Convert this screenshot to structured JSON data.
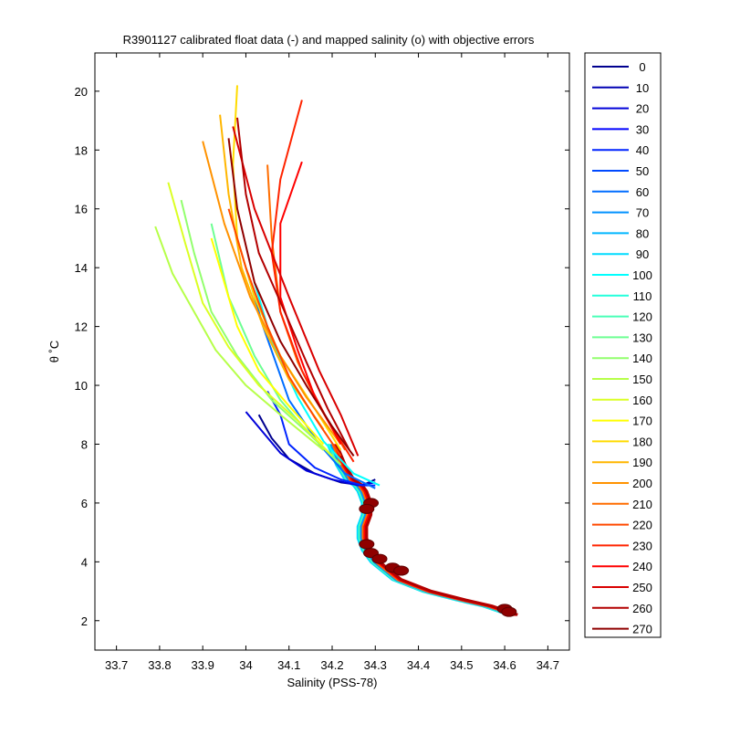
{
  "chart_data": {
    "type": "line",
    "title": "R3901127 calibrated float data (-) and mapped salinity (o) with objective errors",
    "xlabel": "Salinity (PSS-78)",
    "ylabel": "θ ˚C",
    "xlim": [
      33.65,
      34.75
    ],
    "ylim": [
      1.0,
      21.3
    ],
    "xticks": [
      "33.7",
      "33.8",
      "33.9",
      "34",
      "34.1",
      "34.2",
      "34.3",
      "34.4",
      "34.5",
      "34.6",
      "34.7"
    ],
    "yticks": [
      "2",
      "4",
      "6",
      "8",
      "10",
      "12",
      "14",
      "16",
      "18",
      "20"
    ],
    "grid": false,
    "legend_position": "right, outside plot",
    "colormap": "jet",
    "series": [
      {
        "name": "0",
        "color": "#00008f"
      },
      {
        "name": "10",
        "color": "#0000b3"
      },
      {
        "name": "20",
        "color": "#0000d9"
      },
      {
        "name": "30",
        "color": "#0000ff"
      },
      {
        "name": "40",
        "color": "#0024ff"
      },
      {
        "name": "50",
        "color": "#0049ff"
      },
      {
        "name": "60",
        "color": "#006dff"
      },
      {
        "name": "70",
        "color": "#0092ff"
      },
      {
        "name": "80",
        "color": "#00b6ff"
      },
      {
        "name": "90",
        "color": "#00dbff"
      },
      {
        "name": "100",
        "color": "#00ffff"
      },
      {
        "name": "110",
        "color": "#24ffdb"
      },
      {
        "name": "120",
        "color": "#49ffb6"
      },
      {
        "name": "130",
        "color": "#6dff92"
      },
      {
        "name": "140",
        "color": "#92ff6d"
      },
      {
        "name": "150",
        "color": "#b6ff49"
      },
      {
        "name": "160",
        "color": "#dbff24"
      },
      {
        "name": "170",
        "color": "#ffff00"
      },
      {
        "name": "180",
        "color": "#ffdb00"
      },
      {
        "name": "190",
        "color": "#ffb600"
      },
      {
        "name": "200",
        "color": "#ff9200"
      },
      {
        "name": "210",
        "color": "#ff6d00"
      },
      {
        "name": "220",
        "color": "#ff4900"
      },
      {
        "name": "230",
        "color": "#ff2400"
      },
      {
        "name": "240",
        "color": "#ff0000"
      },
      {
        "name": "250",
        "color": "#d90000"
      },
      {
        "name": "260",
        "color": "#b30000"
      },
      {
        "name": "270",
        "color": "#8f0000"
      }
    ],
    "deep_branch": {
      "x": [
        34.2,
        34.22,
        34.24,
        34.26,
        34.27,
        34.28,
        34.28,
        34.27,
        34.27,
        34.28,
        34.3,
        34.35,
        34.42,
        34.5,
        34.56,
        34.62
      ],
      "y": [
        8.0,
        7.3,
        6.8,
        6.6,
        6.4,
        6.0,
        5.6,
        5.2,
        4.8,
        4.4,
        4.0,
        3.4,
        3.0,
        2.7,
        2.5,
        2.2
      ]
    },
    "profiles": [
      {
        "cycle": 0,
        "x": [
          34.03,
          34.06,
          34.1,
          34.16,
          34.22,
          34.27,
          34.3
        ],
        "y": [
          9.0,
          8.2,
          7.5,
          7.0,
          6.7,
          6.6,
          6.8
        ]
      },
      {
        "cycle": 20,
        "x": [
          34.0,
          34.04,
          34.08,
          34.14,
          34.2,
          34.26,
          34.3
        ],
        "y": [
          9.1,
          8.4,
          7.7,
          7.1,
          6.8,
          6.6,
          6.7
        ]
      },
      {
        "cycle": 40,
        "x": [
          34.05,
          34.08,
          34.1,
          34.16,
          34.22,
          34.27,
          34.3
        ],
        "y": [
          9.8,
          9.0,
          8.0,
          7.2,
          6.8,
          6.6,
          6.6
        ]
      },
      {
        "cycle": 60,
        "x": [
          34.0,
          34.04,
          34.1,
          34.17,
          34.23,
          34.3
        ],
        "y": [
          14.0,
          12.0,
          9.5,
          8.0,
          7.0,
          6.5
        ]
      },
      {
        "cycle": 100,
        "x": [
          34.02,
          34.06,
          34.12,
          34.18,
          34.25,
          34.31
        ],
        "y": [
          13.5,
          11.5,
          9.6,
          8.1,
          7.0,
          6.6
        ]
      },
      {
        "cycle": 130,
        "x": [
          33.92,
          33.96,
          34.02,
          34.08,
          34.15,
          34.22
        ],
        "y": [
          15.5,
          13.0,
          11.0,
          9.5,
          8.3,
          7.3
        ]
      },
      {
        "cycle": 140,
        "x": [
          33.85,
          33.88,
          33.92,
          33.98,
          34.06,
          34.15,
          34.22
        ],
        "y": [
          16.3,
          14.5,
          12.5,
          11.0,
          9.5,
          8.3,
          7.3
        ]
      },
      {
        "cycle": 150,
        "x": [
          33.79,
          33.83,
          33.88,
          33.93,
          34.0,
          34.08,
          34.18
        ],
        "y": [
          15.4,
          13.8,
          12.5,
          11.2,
          10.0,
          9.0,
          7.8
        ]
      },
      {
        "cycle": 160,
        "x": [
          33.82,
          33.86,
          33.9,
          33.96,
          34.03,
          34.12,
          34.2
        ],
        "y": [
          16.9,
          14.8,
          12.8,
          11.3,
          10.0,
          8.8,
          7.6
        ]
      },
      {
        "cycle": 170,
        "x": [
          33.92,
          33.95,
          33.98,
          34.03,
          34.1,
          34.18
        ],
        "y": [
          15.0,
          13.5,
          12.0,
          10.5,
          9.3,
          8.0
        ]
      },
      {
        "cycle": 180,
        "x": [
          33.98,
          33.97,
          33.98,
          34.02,
          34.08,
          34.16,
          34.22
        ],
        "y": [
          20.2,
          17.5,
          15.0,
          13.0,
          11.0,
          9.2,
          7.8
        ]
      },
      {
        "cycle": 190,
        "x": [
          33.94,
          33.96,
          33.99,
          34.04,
          34.1,
          34.18
        ],
        "y": [
          19.2,
          16.5,
          14.0,
          12.0,
          10.2,
          8.5
        ]
      },
      {
        "cycle": 200,
        "x": [
          33.9,
          33.95,
          34.01,
          34.08,
          34.14,
          34.22
        ],
        "y": [
          18.3,
          15.5,
          13.0,
          11.0,
          9.6,
          8.0
        ]
      },
      {
        "cycle": 210,
        "x": [
          34.05,
          34.06,
          34.08,
          34.12,
          34.17,
          34.23
        ],
        "y": [
          17.5,
          15.0,
          12.5,
          10.8,
          9.3,
          7.8
        ]
      },
      {
        "cycle": 220,
        "x": [
          33.96,
          34.0,
          34.05,
          34.1,
          34.16,
          34.22
        ],
        "y": [
          16.0,
          14.0,
          12.0,
          10.3,
          8.9,
          7.6
        ]
      },
      {
        "cycle": 230,
        "x": [
          34.13,
          34.08,
          34.06,
          34.08,
          34.13,
          34.19,
          34.25
        ],
        "y": [
          19.7,
          17.0,
          14.5,
          12.5,
          10.5,
          8.8,
          7.4
        ]
      },
      {
        "cycle": 240,
        "x": [
          34.13,
          34.08,
          34.08,
          34.12,
          34.16,
          34.22
        ],
        "y": [
          17.6,
          15.5,
          13.0,
          11.2,
          9.6,
          8.0
        ]
      },
      {
        "cycle": 250,
        "x": [
          33.97,
          34.02,
          34.1,
          34.17,
          34.22,
          34.26
        ],
        "y": [
          18.8,
          16.0,
          13.0,
          10.5,
          9.0,
          7.6
        ]
      },
      {
        "cycle": 260,
        "x": [
          33.98,
          34.0,
          34.03,
          34.09,
          34.14,
          34.19,
          34.24
        ],
        "y": [
          19.1,
          16.5,
          14.5,
          12.5,
          10.8,
          9.2,
          7.8
        ]
      },
      {
        "cycle": 270,
        "x": [
          33.96,
          33.98,
          34.02,
          34.08,
          34.14,
          34.2,
          34.25
        ],
        "y": [
          18.4,
          16.0,
          13.5,
          11.5,
          10.0,
          8.6,
          7.6
        ]
      }
    ],
    "mapped_salinity_markers": [
      {
        "x": 34.29,
        "y": 6.0
      },
      {
        "x": 34.28,
        "y": 5.8
      },
      {
        "x": 34.28,
        "y": 4.6
      },
      {
        "x": 34.29,
        "y": 4.3
      },
      {
        "x": 34.31,
        "y": 4.1
      },
      {
        "x": 34.34,
        "y": 3.8
      },
      {
        "x": 34.36,
        "y": 3.7
      },
      {
        "x": 34.6,
        "y": 2.4
      },
      {
        "x": 34.61,
        "y": 2.3
      }
    ]
  }
}
